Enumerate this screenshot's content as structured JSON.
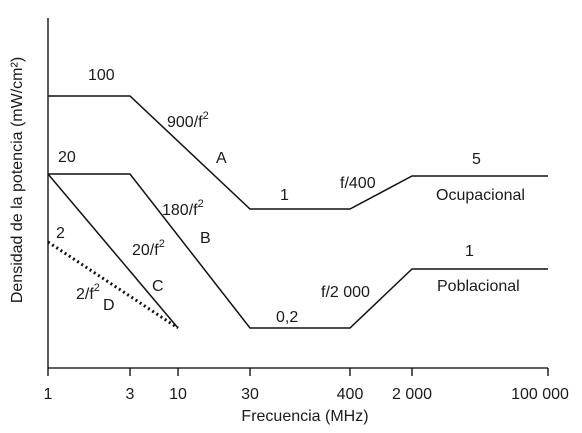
{
  "chart_data": {
    "type": "line",
    "xlabel": "Frecuencia (MHz)",
    "ylabel": "Densidad de la potencia (mW/cm²)",
    "x_scale": "categorical-log",
    "x_ticks": [
      "1",
      "3",
      "10",
      "30",
      "400",
      "2 000",
      "100 000"
    ],
    "series": [
      {
        "name": "Ocupacional",
        "style": "solid",
        "points": [
          {
            "x": "1",
            "y": 100
          },
          {
            "x": "3",
            "y": 100
          },
          {
            "x": "30",
            "y": 1
          },
          {
            "x": "400",
            "y": 1
          },
          {
            "x": "2 000",
            "y": 5
          },
          {
            "x": "100 000",
            "y": 5
          }
        ]
      },
      {
        "name": "Poblacional",
        "style": "solid",
        "points": [
          {
            "x": "1",
            "y": 20
          },
          {
            "x": "3",
            "y": 20
          },
          {
            "x": "30",
            "y": 0.2
          },
          {
            "x": "400",
            "y": 0.2
          },
          {
            "x": "2 000",
            "y": 1
          },
          {
            "x": "100 000",
            "y": 1
          }
        ]
      },
      {
        "name": "C",
        "style": "solid",
        "points": [
          {
            "x": "1",
            "y": 20
          },
          {
            "x": "10",
            "y": 0.2
          }
        ]
      },
      {
        "name": "D",
        "style": "dotted",
        "points": [
          {
            "x": "1",
            "y": 2
          },
          {
            "x": "10",
            "y": 0.2
          }
        ]
      }
    ],
    "annotations": [
      "100",
      "900/f",
      "2",
      "A",
      "20",
      "180/f",
      "2",
      "B",
      "20/f",
      "2",
      "C",
      "2",
      "2/f",
      "2",
      "D",
      "1",
      "f/400",
      "5",
      "Ocupacional",
      "0,2",
      "f/2 000",
      "1",
      "Poblacional"
    ]
  }
}
